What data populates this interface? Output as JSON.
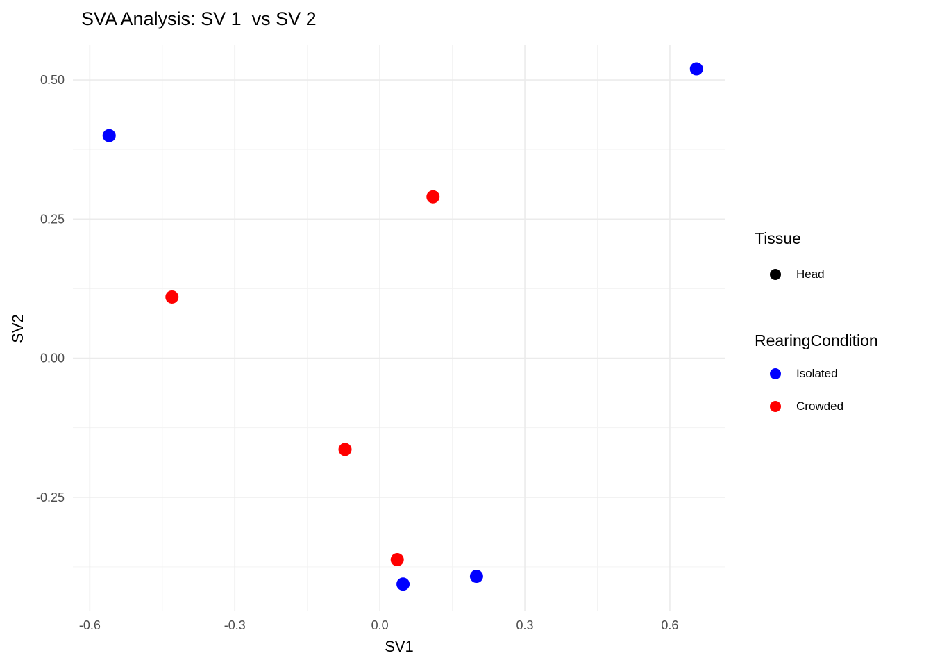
{
  "title": "SVA Analysis: SV 1  vs SV 2",
  "chart_data": {
    "type": "scatter",
    "title": "SVA Analysis: SV 1  vs SV 2",
    "xlabel": "SV1",
    "ylabel": "SV2",
    "xlim": [
      -0.635,
      0.715
    ],
    "ylim": [
      -0.455,
      0.5625
    ],
    "x_ticks": [
      -0.6,
      -0.3,
      0.0,
      0.3,
      0.6
    ],
    "x_tick_labels": [
      "-0.6",
      "-0.3",
      "0.0",
      "0.3",
      "0.6"
    ],
    "y_ticks": [
      -0.25,
      0.0,
      0.25,
      0.5
    ],
    "y_tick_labels": [
      "-0.25",
      "0.00",
      "0.25",
      "0.50"
    ],
    "x_minor": [
      -0.45,
      -0.15,
      0.15,
      0.45
    ],
    "y_minor": [
      -0.375,
      -0.125,
      0.125,
      0.375
    ],
    "grid": true,
    "legend_position": "right",
    "series": [
      {
        "name": "Isolated",
        "color": "#0000FF",
        "points": [
          [
            -0.56,
            0.4
          ],
          [
            0.655,
            0.52
          ],
          [
            0.048,
            -0.406
          ],
          [
            0.2,
            -0.392
          ]
        ]
      },
      {
        "name": "Crowded",
        "color": "#FF0000",
        "points": [
          [
            0.11,
            0.29
          ],
          [
            -0.43,
            0.11
          ],
          [
            -0.072,
            -0.164
          ],
          [
            0.036,
            -0.362
          ]
        ]
      }
    ]
  },
  "legend": {
    "tissue": {
      "title": "Tissue",
      "items": [
        {
          "label": "Head",
          "color": "#000000"
        }
      ]
    },
    "rearing": {
      "title": "RearingCondition",
      "items": [
        {
          "label": "Isolated",
          "color": "#0000FF"
        },
        {
          "label": "Crowded",
          "color": "#FF0000"
        }
      ]
    }
  },
  "colors": {
    "background": "#FFFFFF",
    "grid_major": "#EBEBEB",
    "grid_minor": "#F3F3F3",
    "axis_text": "#4D4D4D",
    "point_isolated": "#0000FF",
    "point_crowded": "#FF0000"
  }
}
